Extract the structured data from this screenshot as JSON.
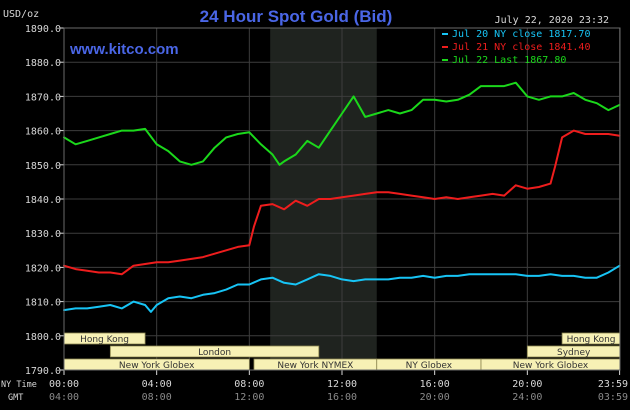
{
  "chart_data": {
    "type": "line",
    "title": "24 Hour Spot Gold (Bid)",
    "ylabel": "USD/oz",
    "ylim": [
      1790,
      1890
    ],
    "yticks": [
      1790,
      1800,
      1810,
      1820,
      1830,
      1840,
      1850,
      1860,
      1870,
      1880,
      1890
    ],
    "xlim": [
      0,
      24
    ],
    "grid": true,
    "legend_position": "top-right",
    "x_primary_ticks": [
      {
        "x": 0,
        "label": "00:00"
      },
      {
        "x": 4,
        "label": "04:00"
      },
      {
        "x": 8,
        "label": "08:00"
      },
      {
        "x": 12,
        "label": "12:00"
      },
      {
        "x": 16,
        "label": "16:00"
      },
      {
        "x": 20,
        "label": "20:00"
      },
      {
        "x": 23.983,
        "label": "23:59"
      }
    ],
    "x_secondary_labels": [
      "04:00",
      "08:00",
      "12:00",
      "16:00",
      "20:00",
      "24:00",
      "03:59"
    ],
    "x_primary_tz_label": "NY Time",
    "x_secondary_tz_label": "GMT",
    "shaded_region": {
      "from": 8.9,
      "to": 13.5
    },
    "series": [
      {
        "name": "Jul 20 NY close 1817.70",
        "color": "#17c4f5",
        "x": [
          0,
          0.5,
          1,
          1.5,
          2,
          2.5,
          3,
          3.5,
          3.75,
          4,
          4.5,
          5,
          5.5,
          6,
          6.5,
          7,
          7.5,
          8,
          8.5,
          9,
          9.5,
          10,
          10.5,
          11,
          11.5,
          12,
          12.5,
          13,
          13.5,
          14,
          14.5,
          15,
          15.5,
          16,
          16.5,
          17,
          17.5,
          18,
          18.5,
          19,
          19.5,
          20,
          20.5,
          21,
          21.5,
          22,
          22.5,
          23,
          23.5,
          23.983
        ],
        "values": [
          1807.5,
          1808,
          1808,
          1808.5,
          1809,
          1808,
          1810,
          1809,
          1807,
          1809,
          1811,
          1811.5,
          1811,
          1812,
          1812.5,
          1813.5,
          1815,
          1815,
          1816.5,
          1817,
          1815.5,
          1815,
          1816.5,
          1818,
          1817.5,
          1816.5,
          1816,
          1816.5,
          1816.5,
          1816.5,
          1817,
          1817,
          1817.5,
          1817,
          1817.5,
          1817.5,
          1818,
          1818,
          1818,
          1818,
          1818,
          1817.5,
          1817.5,
          1818,
          1817.5,
          1817.5,
          1817,
          1817,
          1818.5,
          1820.5
        ]
      },
      {
        "name": "Jul 21 NY close 1841.40",
        "color": "#ee1d1d",
        "x": [
          0,
          0.5,
          1,
          1.5,
          2,
          2.5,
          3,
          3.5,
          4,
          4.5,
          5,
          5.5,
          6,
          6.5,
          7,
          7.5,
          8,
          8.2,
          8.5,
          9,
          9.5,
          10,
          10.5,
          11,
          11.5,
          12,
          12.5,
          13,
          13.5,
          14,
          14.5,
          15,
          15.5,
          16,
          16.5,
          17,
          17.5,
          18,
          18.5,
          19,
          19.5,
          20,
          20.5,
          21,
          21.2,
          21.5,
          22,
          22.5,
          23,
          23.5,
          23.983
        ],
        "values": [
          1820.5,
          1819.5,
          1819,
          1818.5,
          1818.5,
          1818,
          1820.5,
          1821,
          1821.5,
          1821.5,
          1822,
          1822.5,
          1823,
          1824,
          1825,
          1826,
          1826.5,
          1832,
          1838,
          1838.5,
          1837,
          1839.5,
          1838,
          1840,
          1840,
          1840.5,
          1841,
          1841.5,
          1842,
          1842,
          1841.5,
          1841,
          1840.5,
          1840,
          1840.5,
          1840,
          1840.5,
          1841,
          1841.5,
          1841,
          1844,
          1843,
          1843.5,
          1844.5,
          1849.5,
          1858,
          1860,
          1859,
          1859,
          1859,
          1858.5
        ]
      },
      {
        "name": "Jul 22 Last 1867.80",
        "color": "#1bd81b",
        "x": [
          0,
          0.5,
          1,
          1.5,
          2,
          2.5,
          3,
          3.5,
          4,
          4.5,
          5,
          5.5,
          6,
          6.5,
          7,
          7.5,
          8,
          8.5,
          9,
          9.3,
          9.5,
          10,
          10.5,
          11,
          11.5,
          12,
          12.5,
          13,
          13.5,
          14,
          14.5,
          15,
          15.5,
          16,
          16.5,
          17,
          17.5,
          18,
          18.5,
          19,
          19.5,
          20,
          20.5,
          21,
          21.5,
          22,
          22.5,
          23,
          23.5,
          23.983
        ],
        "values": [
          1858,
          1856,
          1857,
          1858,
          1859,
          1860,
          1860,
          1860.5,
          1856,
          1854,
          1851,
          1850,
          1851,
          1855,
          1858,
          1859,
          1859.5,
          1856,
          1853,
          1850,
          1851,
          1853,
          1857,
          1855,
          1860,
          1865,
          1870,
          1864,
          1865,
          1866,
          1865,
          1866,
          1869,
          1869,
          1868.5,
          1869,
          1870.5,
          1873,
          1873,
          1873,
          1874,
          1870,
          1869,
          1870,
          1870,
          1871,
          1869,
          1868,
          1866,
          1867.5
        ]
      }
    ],
    "sessions": [
      {
        "label": "Hong Kong",
        "from": 0,
        "to": 3.5,
        "row": 0
      },
      {
        "label": "Hong Kong",
        "from": 21.5,
        "to": 24,
        "row": 0
      },
      {
        "label": "London",
        "from": 2,
        "to": 11,
        "row": 1
      },
      {
        "label": "Sydney",
        "from": 20,
        "to": 24,
        "row": 1
      },
      {
        "label": "New York Globex",
        "from": 0,
        "to": 8,
        "row": 2
      },
      {
        "label": "New York NYMEX",
        "from": 8.2,
        "to": 13.5,
        "row": 2
      },
      {
        "label": "NY Globex",
        "from": 13.5,
        "to": 18,
        "row": 2
      },
      {
        "label": "New York Globex",
        "from": 18,
        "to": 24,
        "row": 2
      }
    ]
  },
  "header": {
    "date_time": "July 22, 2020 23:32",
    "watermark": "www.kitco.com"
  },
  "colors": {
    "background": "#000000",
    "grid": "#3d3d3d",
    "shade": "#1f231f",
    "axis_text": "#d8d8d8",
    "title": "#4a66e6",
    "watermark": "#4a66e6",
    "session_bg": "#f7f1b5",
    "session_text": "#333333"
  }
}
